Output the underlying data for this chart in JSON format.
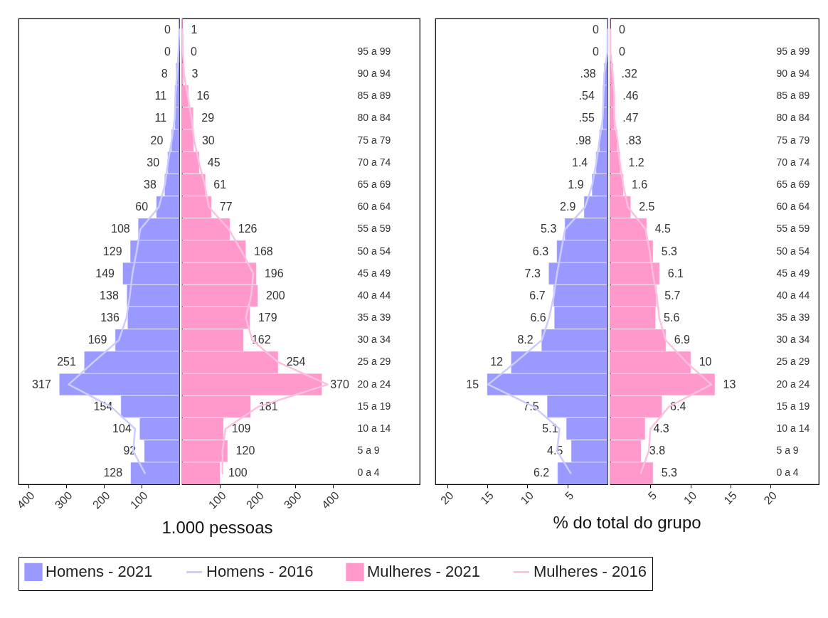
{
  "chart_data": [
    {
      "type": "bar",
      "orientation": "horizontal",
      "legend": "bottom",
      "grid": false,
      "tick_labels": "x",
      "categories": [
        null,
        "95 a 99",
        "90 a 94",
        "85 a 89",
        "80 a 84",
        "75 a 79",
        "70 a 74",
        "65 a 69",
        "60 a 64",
        "55 a 59",
        "50 a 54",
        "45 a 49",
        "40 a 44",
        "35 a 39",
        "30 a 34",
        "25 a 29",
        "20 a 24",
        "15 a 19",
        "10 a 14",
        "5 a 9",
        "0 a 4"
      ],
      "xlim": [
        426,
        0
      ],
      "xticks": [
        400,
        300,
        200,
        100
      ],
      "series": [
        {
          "name": "Homens - 2021",
          "type": "bar",
          "color": "#9999ff",
          "values": [
            0,
            0,
            8,
            11,
            11,
            20,
            30,
            38,
            60,
            108,
            129,
            149,
            138,
            136,
            169,
            251,
            317,
            154,
            104,
            92,
            128
          ],
          "value_labels": [
            "0",
            "0",
            "8",
            "11",
            "11",
            "20",
            "30",
            "38",
            "60",
            "108",
            "129",
            "149",
            "138",
            "136",
            "169",
            "251",
            "317",
            "154",
            "104",
            "92",
            "128"
          ]
        },
        {
          "name": "Homens - 2016",
          "type": "line",
          "color": "#ccccff",
          "values": [
            0,
            2,
            6,
            10,
            12,
            20,
            30,
            38,
            54,
            103,
            113,
            124,
            131,
            140,
            160,
            228,
            293,
            181,
            117,
            122,
            91
          ]
        }
      ]
    },
    {
      "type": "bar",
      "orientation": "horizontal",
      "xlabel": "1.000 pessoas",
      "legend": "bottom",
      "grid": false,
      "categories": [
        null,
        "95 a 99",
        "90 a 94",
        "85 a 89",
        "80 a 84",
        "75 a 79",
        "70 a 74",
        "65 a 69",
        "60 a 64",
        "55 a 59",
        "50 a 54",
        "45 a 49",
        "40 a 44",
        "35 a 39",
        "30 a 34",
        "25 a 29",
        "20 a 24",
        "15 a 19",
        "10 a 14",
        "5 a 9",
        "0 a 4"
      ],
      "xlim": [
        0,
        630
      ],
      "xticks": [
        100,
        200,
        300,
        400
      ],
      "series": [
        {
          "name": "Mulheres - 2021",
          "type": "bar",
          "color": "#ff99cc",
          "values": [
            1,
            0,
            3,
            16,
            29,
            30,
            45,
            61,
            77,
            126,
            168,
            196,
            200,
            179,
            162,
            254,
            370,
            181,
            109,
            120,
            100
          ],
          "value_labels": [
            "1",
            "0",
            "3",
            "16",
            "29",
            "30",
            "45",
            "61",
            "77",
            "126",
            "168",
            "196",
            "200",
            "179",
            "162",
            "254",
            "370",
            "181",
            "109",
            "120",
            "100"
          ]
        },
        {
          "name": "Mulheres - 2016",
          "type": "line",
          "color": "#ffc0e0",
          "values": [
            1,
            2,
            5,
            15,
            25,
            32,
            45,
            60,
            71,
            124,
            158,
            189,
            183,
            169,
            186,
            255,
            386,
            202,
            115,
            107,
            107
          ]
        }
      ]
    },
    {
      "type": "bar",
      "orientation": "horizontal",
      "legend": "bottom",
      "grid": false,
      "tick_labels": "x",
      "categories": [
        null,
        "95 a 99",
        "90 a 94",
        "85 a 89",
        "80 a 84",
        "75 a 79",
        "70 a 74",
        "65 a 69",
        "60 a 64",
        "55 a 59",
        "50 a 54",
        "45 a 49",
        "40 a 44",
        "35 a 39",
        "30 a 34",
        "25 a 29",
        "20 a 24",
        "15 a 19",
        "10 a 14",
        "5 a 9",
        "0 a 4"
      ],
      "xlim": [
        21.5,
        0
      ],
      "xticks": [
        20,
        15,
        10,
        5
      ],
      "series": [
        {
          "name": "Homens - 2021",
          "type": "bar",
          "color": "#9999ff",
          "values": [
            0,
            0,
            0.38,
            0.54,
            0.55,
            0.98,
            1.4,
            1.9,
            2.9,
            5.3,
            6.3,
            7.3,
            6.7,
            6.6,
            8.2,
            12,
            15,
            7.5,
            5.1,
            4.5,
            6.2
          ],
          "value_labels": [
            "0",
            "0",
            ".38",
            ".54",
            ".55",
            ".98",
            "1.4",
            "1.9",
            "2.9",
            "5.3",
            "6.3",
            "7.3",
            "6.7",
            "6.6",
            "8.2",
            "12",
            "15",
            "7.5",
            "5.1",
            "4.5",
            "6.2"
          ]
        },
        {
          "name": "Homens - 2016",
          "type": "line",
          "color": "#ccccff",
          "values": [
            0,
            0,
            0.4,
            0.5,
            0.6,
            1,
            1.4,
            1.9,
            2.8,
            5.3,
            5.8,
            6.3,
            6.7,
            7.3,
            8.2,
            11.5,
            14.9,
            9.2,
            6,
            6.3,
            4.6
          ]
        }
      ]
    },
    {
      "type": "bar",
      "orientation": "horizontal",
      "xlabel": "% do total do grupo",
      "legend": "bottom",
      "grid": false,
      "categories": [
        null,
        "95 a 99",
        "90 a 94",
        "85 a 89",
        "80 a 84",
        "75 a 79",
        "70 a 74",
        "65 a 69",
        "60 a 64",
        "55 a 59",
        "50 a 54",
        "45 a 49",
        "40 a 44",
        "35 a 39",
        "30 a 34",
        "25 a 29",
        "20 a 24",
        "15 a 19",
        "10 a 14",
        "5 a 9",
        "0 a 4"
      ],
      "xlim": [
        0,
        26
      ],
      "xticks": [
        5,
        10,
        15,
        20
      ],
      "series": [
        {
          "name": "Mulheres - 2021",
          "type": "bar",
          "color": "#ff99cc",
          "values": [
            0,
            0,
            0.32,
            0.46,
            0.47,
            0.83,
            1.2,
            1.6,
            2.5,
            4.5,
            5.3,
            6.1,
            5.7,
            5.6,
            6.9,
            10,
            13,
            6.4,
            4.3,
            3.8,
            5.3
          ],
          "value_labels": [
            "0",
            "0",
            ".32",
            ".46",
            ".47",
            ".83",
            "1.2",
            "1.6",
            "2.5",
            "4.5",
            "5.3",
            "6.1",
            "5.7",
            "5.6",
            "6.9",
            "10",
            "13",
            "6.4",
            "4.3",
            "3.8",
            "5.3"
          ]
        },
        {
          "name": "Mulheres - 2016",
          "type": "line",
          "color": "#ffc0e0",
          "values": [
            0,
            0,
            0.3,
            0.5,
            0.5,
            0.9,
            1.2,
            1.6,
            2.2,
            4.4,
            4.9,
            5.3,
            5.8,
            6.1,
            6.9,
            9.5,
            12.6,
            7.3,
            5,
            4.8,
            3.8
          ]
        }
      ]
    }
  ]
}
